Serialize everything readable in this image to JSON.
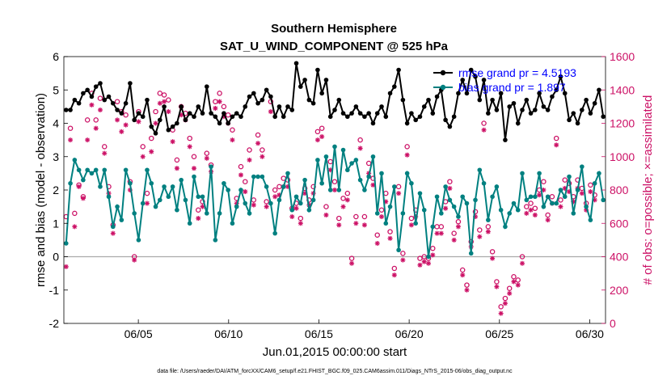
{
  "title": "Southern Hemisphere",
  "subtitle": "SAT_U_WIND_COMPONENT @ 525 hPa",
  "colors": {
    "rmse": "#000000",
    "bias": "#008080",
    "obs": "#cc1166",
    "zero": "#aaaaaa",
    "legend_text": "#0000ff"
  },
  "chart_data": {
    "type": "line",
    "title": "Southern Hemisphere",
    "subtitle": "SAT_U_WIND_COMPONENT @ 525 hPa",
    "xlabel": "Jun.01,2015 00:00:00 start",
    "ylabel_left": "rmse and bias (model - observation)",
    "ylabel_right": "# of obs: o=possible; ×=assimilated",
    "xlim": [
      0,
      120
    ],
    "ylim_left": [
      -2,
      6
    ],
    "ylim_right": [
      0,
      1600
    ],
    "left_ticks": [
      "-2",
      "-1",
      "0",
      "1",
      "2",
      "3",
      "4",
      "5",
      "6"
    ],
    "right_ticks": [
      "0",
      "200",
      "400",
      "600",
      "800",
      "1000",
      "1200",
      "1400",
      "1600"
    ],
    "x_ticks": [
      {
        "label": "06/05",
        "t": 16.5
      },
      {
        "label": "06/10",
        "t": 36.5
      },
      {
        "label": "06/15",
        "t": 56.5
      },
      {
        "label": "06/20",
        "t": 76.5
      },
      {
        "label": "06/25",
        "t": 96.5
      },
      {
        "label": "06/30",
        "t": 116.5
      }
    ],
    "legend": [
      {
        "name": "rmse",
        "label": "rmse grand pr = 4.5193"
      },
      {
        "name": "bias",
        "label": "bias grand pr = 1.897"
      }
    ],
    "series": [
      {
        "name": "rmse",
        "axis": "left",
        "values": [
          4.4,
          4.4,
          4.7,
          4.6,
          4.9,
          5.0,
          4.8,
          5.1,
          5.2,
          4.7,
          4.8,
          4.6,
          4.4,
          4.3,
          4.6,
          5.2,
          4.1,
          4.3,
          4.2,
          4.7,
          3.9,
          3.7,
          4.1,
          4.5,
          3.8,
          3.9,
          4.0,
          4.5,
          4.1,
          4.3,
          4.2,
          4.5,
          4.3,
          5.1,
          4.3,
          4.2,
          4.0,
          4.3,
          4.0,
          4.2,
          4.3,
          4.2,
          4.5,
          4.8,
          4.9,
          4.6,
          4.7,
          5.0,
          4.8,
          4.2,
          4.5,
          4.2,
          4.5,
          4.4,
          5.8,
          5.1,
          5.3,
          4.7,
          4.6,
          5.6,
          4.9,
          5.3,
          4.2,
          4.4,
          4.7,
          4.3,
          4.2,
          4.3,
          4.5,
          4.3,
          4.2,
          4.3,
          4.0,
          4.3,
          4.5,
          4.2,
          4.9,
          5.1,
          5.6,
          4.7,
          4.0,
          4.3,
          4.1,
          4.2,
          4.5,
          4.7,
          4.3,
          4.8,
          5.0,
          4.1,
          3.9,
          4.2,
          4.9,
          5.3,
          4.9,
          5.6,
          5.4,
          4.7,
          5.3,
          4.3,
          4.7,
          4.4,
          4.9,
          3.5,
          4.5,
          4.6,
          4.0,
          4.4,
          4.7,
          4.3,
          4.4,
          4.9,
          4.5,
          4.4,
          4.8,
          5.0,
          5.4,
          4.9,
          4.1,
          4.3,
          4.0,
          4.4,
          4.7,
          4.3,
          4.6,
          5.0,
          4.2
        ]
      },
      {
        "name": "bias",
        "axis": "left",
        "values": [
          0.4,
          2.2,
          2.9,
          2.6,
          2.3,
          2.6,
          2.5,
          2.6,
          2.1,
          2.6,
          1.8,
          0.9,
          1.5,
          1.1,
          2.6,
          2.2,
          1.3,
          0.5,
          1.6,
          2.6,
          2.2,
          1.5,
          1.7,
          2.1,
          1.8,
          2.1,
          1.4,
          2.3,
          1.7,
          1.0,
          2.4,
          1.8,
          1.8,
          1.3,
          2.7,
          0.5,
          1.3,
          2.2,
          2.0,
          1.0,
          1.5,
          2.0,
          1.6,
          1.3,
          2.4,
          2.4,
          2.4,
          2.1,
          1.6,
          0.7,
          1.7,
          2.1,
          2.5,
          1.4,
          1.8,
          1.6,
          2.3,
          1.4,
          1.7,
          2.9,
          2.2,
          3.0,
          2.0,
          3.3,
          2.0,
          3.2,
          2.6,
          2.8,
          2.9,
          2.3,
          2.0,
          2.4,
          3.0,
          1.3,
          2.5,
          1.0,
          1.5,
          2.1,
          0.2,
          1.3,
          2.5,
          2.2,
          1.0,
          1.9,
          1.4,
          0.0,
          0.9,
          1.8,
          1.3,
          2.1,
          1.7,
          1.5,
          1.2,
          1.8,
          1.6,
          0.1,
          1.7,
          2.6,
          2.2,
          1.1,
          1.8,
          2.1,
          1.4,
          0.9,
          1.3,
          1.6,
          1.4,
          2.5,
          1.7,
          1.8,
          1.8,
          2.5,
          1.5,
          1.8,
          1.6,
          1.6,
          2.0,
          1.8,
          2.4,
          1.3,
          2.0,
          2.7,
          1.5,
          1.1,
          2.2,
          2.5,
          1.7
        ]
      },
      {
        "name": "obs_possible",
        "axis": "right",
        "marker": "o",
        "values": [
          640,
          1170,
          660,
          830,
          760,
          1220,
          1380,
          1220,
          1350,
          1060,
          820,
          590,
          1330,
          1270,
          1250,
          850,
          400,
          1270,
          1060,
          780,
          1110,
          1270,
          1380,
          1370,
          1340,
          1160,
          980,
          1300,
          1260,
          1110,
          1000,
          680,
          730,
          1020,
          950,
          1330,
          1380,
          1300,
          1250,
          1160,
          750,
          940,
          850,
          1040,
          740,
          1130,
          1040,
          730,
          1330,
          800,
          820,
          870,
          860,
          690,
          720,
          630,
          810,
          740,
          820,
          1150,
          1170,
          700,
          970,
          850,
          630,
          750,
          780,
          390,
          640,
          1100,
          640,
          960,
          870,
          530,
          680,
          780,
          550,
          330,
          820,
          420,
          1060,
          630,
          680,
          390,
          400,
          390,
          450,
          580,
          580,
          730,
          850,
          540,
          610,
          320,
          230,
          490,
          670,
          560,
          1200,
          580,
          430,
          250,
          100,
          150,
          210,
          280,
          260,
          400,
          700,
          720,
          690,
          800,
          850,
          650,
          760,
          1110,
          740,
          860,
          840,
          760,
          860,
          810,
          720,
          830,
          770
        ]
      },
      {
        "name": "obs_assimilated",
        "axis": "right",
        "marker": "x",
        "values": [
          340,
          1100,
          580,
          820,
          750,
          1100,
          1310,
          1170,
          1280,
          1020,
          780,
          540,
          1220,
          1150,
          1190,
          800,
          380,
          1210,
          1000,
          720,
          1030,
          1200,
          1320,
          1330,
          1270,
          1090,
          930,
          1250,
          1220,
          1060,
          930,
          630,
          700,
          990,
          910,
          1290,
          1330,
          1240,
          1200,
          1100,
          720,
          890,
          790,
          980,
          710,
          1080,
          1000,
          700,
          1270,
          760,
          770,
          820,
          820,
          640,
          690,
          600,
          780,
          710,
          780,
          1100,
          1120,
          650,
          920,
          800,
          590,
          700,
          740,
          360,
          600,
          1050,
          590,
          900,
          830,
          480,
          640,
          730,
          510,
          290,
          780,
          380,
          1010,
          590,
          640,
          350,
          370,
          360,
          410,
          540,
          540,
          690,
          810,
          500,
          580,
          290,
          200,
          460,
          640,
          520,
          1160,
          550,
          390,
          220,
          60,
          120,
          180,
          250,
          230,
          360,
          660,
          680,
          650,
          770,
          800,
          620,
          720,
          1070,
          700,
          810,
          790,
          730,
          810,
          780,
          680,
          790,
          740
        ]
      }
    ]
  },
  "footer": "data file: /Users/raeder/DAI/ATM_forcXX/CAM6_setup/f.e21.FHIST_BGC.f09_025.CAM6assim.011/Diags_NTrS_2015-06/obs_diag_output.nc"
}
